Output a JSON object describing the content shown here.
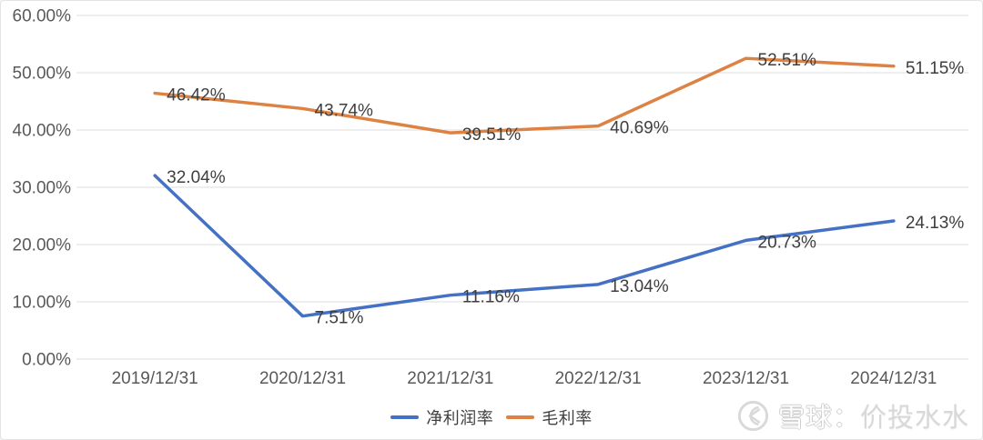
{
  "chart_data": {
    "type": "line",
    "title": "",
    "xlabel": "",
    "ylabel": "",
    "categories": [
      "2019/12/31",
      "2020/12/31",
      "2021/12/31",
      "2022/12/31",
      "2023/12/31",
      "2024/12/31"
    ],
    "series": [
      {
        "name": "净利润率",
        "color": "#4571c4",
        "values": [
          32.04,
          7.51,
          11.16,
          13.04,
          20.73,
          24.13
        ]
      },
      {
        "name": "毛利率",
        "color": "#dd8243",
        "values": [
          46.42,
          43.74,
          39.51,
          40.69,
          52.51,
          51.15
        ]
      }
    ],
    "data_labels": [
      "32.04%",
      "7.51%",
      "11.16%",
      "13.04%",
      "20.73%",
      "24.13%",
      "46.42%",
      "43.74%",
      "39.51%",
      "40.69%",
      "52.51%",
      "51.15%"
    ],
    "y_axis": {
      "min": 0,
      "max": 60,
      "tick_step": 10,
      "tick_labels": [
        "0.00%",
        "10.00%",
        "20.00%",
        "30.00%",
        "40.00%",
        "50.00%",
        "60.00%"
      ]
    },
    "grid": true,
    "legend_position": "bottom"
  },
  "watermark": {
    "brand": "雪球：",
    "user": "价投水水",
    "logo": "xueqiu-snowball-logo"
  },
  "colors": {
    "grid_line": "#e4e4e4",
    "axis_text": "#595959",
    "data_label_text": "#3e3e3e",
    "background": "#ffffff",
    "card_border": "#e3e3e3",
    "watermark_gray": "#d9d9d9"
  }
}
